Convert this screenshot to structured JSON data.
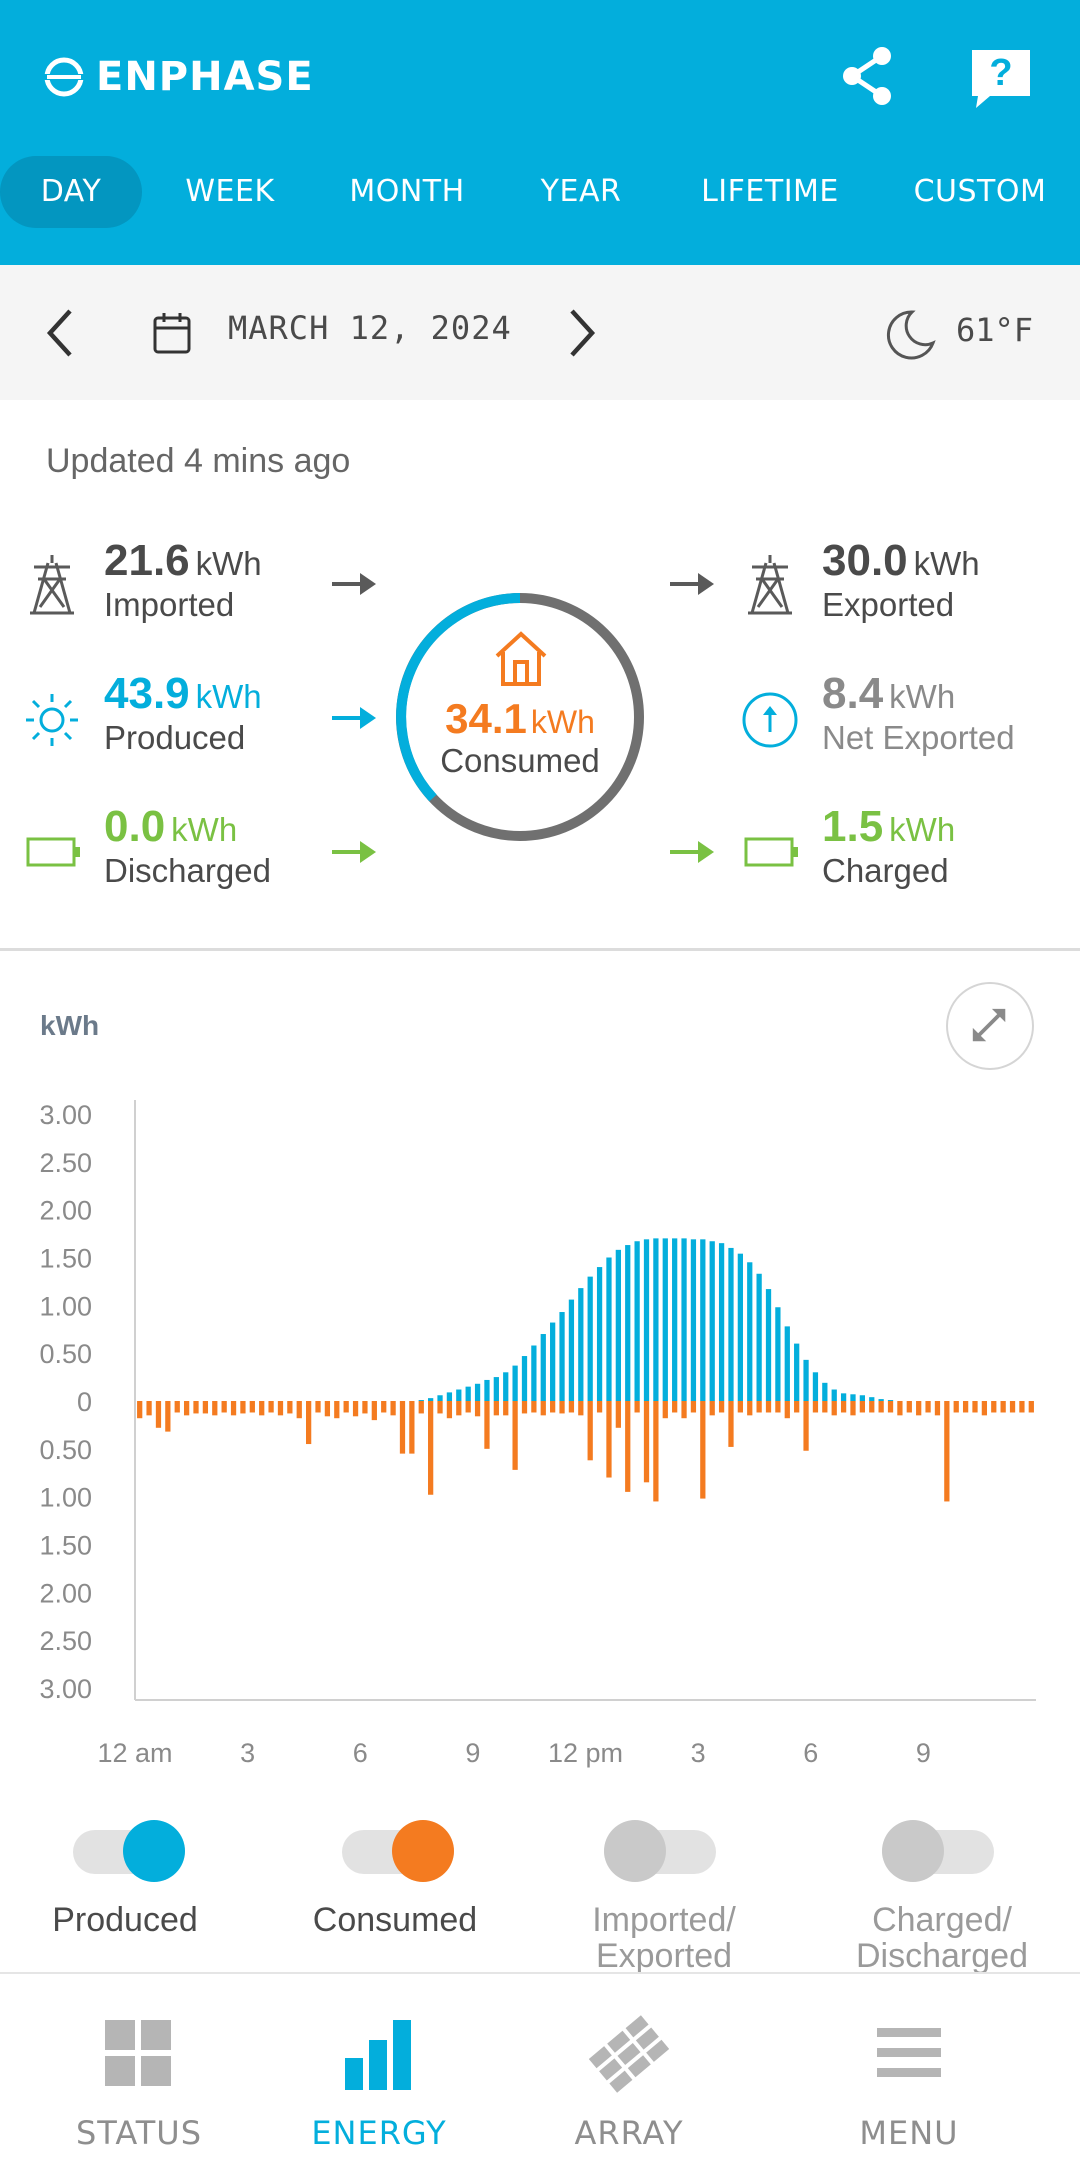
{
  "app": {
    "brand": "ENPHASE"
  },
  "header": {
    "tabs": [
      {
        "label": "DAY",
        "active": true
      },
      {
        "label": "WEEK",
        "active": false
      },
      {
        "label": "MONTH",
        "active": false
      },
      {
        "label": "YEAR",
        "active": false
      },
      {
        "label": "LIFETIME",
        "active": false
      },
      {
        "label": "CUSTOM",
        "active": false
      }
    ],
    "share_icon": "share-icon",
    "help_icon": "help-icon",
    "help_glyph": "?"
  },
  "datebar": {
    "date": "MARCH 12, 2024",
    "temperature": "61°F",
    "weather_icon": "moon-icon"
  },
  "summary": {
    "updated": "Updated 4 mins ago",
    "imported": {
      "value": "21.6",
      "unit": "kWh",
      "label": "Imported"
    },
    "produced": {
      "value": "43.9",
      "unit": "kWh",
      "label": "Produced"
    },
    "discharged": {
      "value": "0.0",
      "unit": "kWh",
      "label": "Discharged"
    },
    "exported": {
      "value": "30.0",
      "unit": "kWh",
      "label": "Exported"
    },
    "net_exported": {
      "value": "8.4",
      "unit": "kWh",
      "label": "Net Exported"
    },
    "charged": {
      "value": "1.5",
      "unit": "kWh",
      "label": "Charged"
    },
    "consumed": {
      "value": "34.1",
      "unit": "kWh",
      "label": "Consumed"
    },
    "colors": {
      "produced": "#03aedc",
      "consumed": "#f47b20",
      "battery": "#7ac143",
      "grid": "#5a5a5a",
      "net": "#8a8a8a"
    }
  },
  "chart_data": {
    "type": "bar",
    "ylabel": "kWh",
    "ytick_labels": [
      "3.00",
      "2.50",
      "2.00",
      "1.50",
      "1.00",
      "0.50",
      "0",
      "0.50",
      "1.00",
      "1.50",
      "2.00",
      "2.50",
      "3.00"
    ],
    "ylim": [
      -3,
      3
    ],
    "xtick_labels": [
      "12 am",
      "3",
      "6",
      "9",
      "12 pm",
      "3",
      "6",
      "9"
    ],
    "interval_minutes": 15,
    "series": [
      {
        "name": "Produced",
        "color": "#03aedc",
        "values": [
          0,
          0,
          0,
          0,
          0,
          0,
          0,
          0,
          0,
          0,
          0,
          0,
          0,
          0,
          0,
          0,
          0,
          0,
          0,
          0,
          0,
          0,
          0,
          0,
          0,
          0,
          0,
          0,
          0,
          0,
          0.01,
          0.03,
          0.06,
          0.09,
          0.12,
          0.15,
          0.18,
          0.22,
          0.25,
          0.3,
          0.37,
          0.47,
          0.58,
          0.7,
          0.82,
          0.93,
          1.06,
          1.18,
          1.3,
          1.4,
          1.5,
          1.58,
          1.63,
          1.67,
          1.69,
          1.7,
          1.7,
          1.7,
          1.7,
          1.69,
          1.69,
          1.67,
          1.65,
          1.6,
          1.54,
          1.45,
          1.33,
          1.17,
          0.98,
          0.78,
          0.6,
          0.43,
          0.3,
          0.19,
          0.12,
          0.08,
          0.07,
          0.06,
          0.04,
          0.02,
          0.01,
          0,
          0,
          0,
          0,
          0,
          0,
          0,
          0,
          0,
          0,
          0,
          0,
          0,
          0,
          0
        ]
      },
      {
        "name": "Consumed",
        "color": "#f47b20",
        "values": [
          -0.18,
          -0.15,
          -0.28,
          -0.32,
          -0.12,
          -0.15,
          -0.13,
          -0.13,
          -0.15,
          -0.12,
          -0.15,
          -0.13,
          -0.12,
          -0.15,
          -0.12,
          -0.15,
          -0.13,
          -0.18,
          -0.45,
          -0.12,
          -0.16,
          -0.18,
          -0.12,
          -0.16,
          -0.13,
          -0.2,
          -0.12,
          -0.15,
          -0.55,
          -0.55,
          -0.13,
          -0.98,
          -0.13,
          -0.18,
          -0.15,
          -0.12,
          -0.16,
          -0.5,
          -0.15,
          -0.15,
          -0.72,
          -0.13,
          -0.12,
          -0.15,
          -0.12,
          -0.13,
          -0.12,
          -0.15,
          -0.62,
          -0.12,
          -0.8,
          -0.28,
          -0.95,
          -0.12,
          -0.85,
          -1.05,
          -0.18,
          -0.12,
          -0.18,
          -0.12,
          -1.02,
          -0.15,
          -0.12,
          -0.48,
          -0.12,
          -0.15,
          -0.12,
          -0.12,
          -0.12,
          -0.18,
          -0.12,
          -0.52,
          -0.12,
          -0.12,
          -0.15,
          -0.12,
          -0.15,
          -0.12,
          -0.12,
          -0.12,
          -0.12,
          -0.15,
          -0.12,
          -0.15,
          -0.12,
          -0.15,
          -1.05,
          -0.12,
          -0.12,
          -0.12,
          -0.15,
          -0.12,
          -0.12,
          -0.12,
          -0.12,
          -0.12
        ]
      }
    ]
  },
  "legend": {
    "items": [
      {
        "label_line1": "Produced",
        "label_line2": "",
        "on": true,
        "color": "#03aedc"
      },
      {
        "label_line1": "Consumed",
        "label_line2": "",
        "on": true,
        "color": "#f47b20"
      },
      {
        "label_line1": "Imported/",
        "label_line2": "Exported",
        "on": false,
        "color": "#c9c9c9"
      },
      {
        "label_line1": "Charged/",
        "label_line2": "Discharged",
        "on": false,
        "color": "#c9c9c9"
      }
    ]
  },
  "bottom_nav": {
    "items": [
      {
        "label": "STATUS",
        "icon": "status-grid-icon",
        "active": false
      },
      {
        "label": "ENERGY",
        "icon": "energy-bars-icon",
        "active": true
      },
      {
        "label": "ARRAY",
        "icon": "array-panels-icon",
        "active": false
      },
      {
        "label": "MENU",
        "icon": "menu-icon",
        "active": false
      }
    ]
  }
}
